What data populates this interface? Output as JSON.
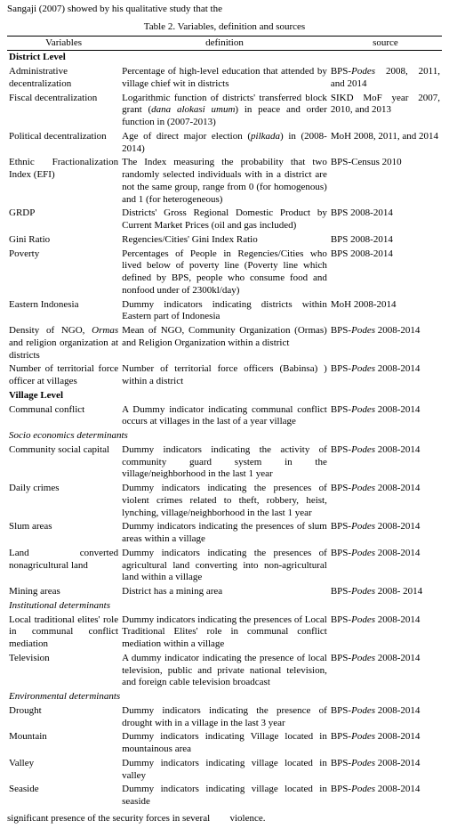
{
  "topFragment": "Sangaji (2007) showed by his qualitative study that the",
  "tableCaption": "Table 2. Variables, definition and sources",
  "headers": {
    "var": "Variables",
    "def": "definition",
    "src": "source"
  },
  "sections": [
    {
      "title": "District Level",
      "rows": [
        {
          "var": "Administrative decentralization",
          "def": "Percentage of high-level education that attended by village chief wit in districts",
          "src": "BPS-<i>Podes</i> 2008, 2011, and 2014"
        },
        {
          "var": "Fiscal decentralization",
          "def": "Logarithmic function of districts' transferred block grant (<i>dana alokasi umum</i>) in peace and order function in (2007-2013)",
          "src": "SIKD MoF  year 2007, 2010, and 2013"
        },
        {
          "var": "Political decentralization",
          "def": "Age of direct major election (<i>pilkada</i>) in (2008-2014)",
          "src": "MoH 2008, 2011, and 2014"
        },
        {
          "var": "Ethnic Fractionalization Index (EFI)",
          "def": "The Index measuring the probability that two randomly selected individuals with in a district are not the same group, range from 0 (for homogenous) and 1 (for heterogeneous)",
          "src": "BPS-Census 2010"
        },
        {
          "var": "GRDP",
          "def": "Districts' Gross Regional Domestic Product by Current Market Prices (oil and gas included)",
          "src": "BPS 2008-2014"
        },
        {
          "var": "Gini Ratio",
          "def": "Regencies/Cities' Gini Index Ratio",
          "src": "BPS 2008-2014"
        },
        {
          "var": "Poverty",
          "def": "Percentages of People in Regencies/Cities who lived below of poverty line (Poverty line which defined by BPS, people who consume food and nonfood under of 2300kl/day)",
          "src": "BPS 2008-2014"
        },
        {
          "var": "Eastern Indonesia",
          "def": "Dummy indicators indicating districts within Eastern part of Indonesia",
          "src": "MoH 2008-2014"
        },
        {
          "var": "Density of NGO, <i>Ormas</i> and religion organization at districts",
          "def": "Mean of NGO, Community Organization (Ormas) and Religion Organization within a district",
          "src": "BPS-<i>Podes</i> 2008-2014"
        },
        {
          "var": "Number of territorial force officer at villages",
          "def": "Number of territorial force officers (Babinsa) ) within a district",
          "src": "BPS-<i>Podes</i> 2008-2014"
        }
      ]
    },
    {
      "title": "Village Level",
      "rows": [
        {
          "var": "Communal conflict",
          "def": "A Dummy indicator indicating communal conflict occurs at villages in the last of a year village",
          "src": "BPS-<i>Podes</i> 2008-2014"
        }
      ]
    },
    {
      "titleItalic": "Socio economics determinants",
      "rows": [
        {
          "var": "Community social capital",
          "def": "Dummy indicators indicating the activity of community guard system  in the village/neighborhood in the last 1 year",
          "src": "BPS-<i>Podes</i> 2008-2014"
        },
        {
          "var": "Daily crimes",
          "def": "Dummy indicators indicating the presences of violent crimes related to theft, robbery, heist, lynching, village/neighborhood in the last 1 year",
          "src": "BPS-<i>Podes</i> 2008-2014"
        },
        {
          "var": "Slum areas",
          "def": "Dummy indicators indicating the presences of  slum areas within a village",
          "src": "BPS-<i>Podes</i> 2008-2014"
        },
        {
          "var": "Land converted nonagricultural land",
          "def": "Dummy indicators indicating the presences of  agricultural land converting into non-agricultural land within a village",
          "src": "BPS-<i>Podes</i> 2008-2014"
        },
        {
          "var": "Mining areas",
          "def": "District has a mining area",
          "src": "BPS-<i>Podes</i> 2008- 2014"
        }
      ]
    },
    {
      "titleItalic": "Institutional determinants",
      "rows": [
        {
          "var": "Local  traditional elites' role in communal conflict  mediation",
          "def": "Dummy indicators indicating the presences of Local Traditional Elites' role  in communal conflict mediation within a village",
          "src": "BPS-<i>Podes</i> 2008-2014"
        },
        {
          "var": "Television",
          "def": "A dummy indicator indicating the presence of local television, public and private national television, and foreign cable television broadcast",
          "src": "BPS-<i>Podes</i> 2008-2014"
        }
      ]
    },
    {
      "titleItalic": "Environmental determinants",
      "rows": [
        {
          "var": "Drought",
          "def": "Dummy indicators indicating the presence of drought with in a village in the last 3 year",
          "src": "BPS-<i>Podes</i> 2008-2014"
        },
        {
          "var": "Mountain",
          "def": "Dummy indicators indicating Village located in mountainous area",
          "src": "BPS-<i>Podes</i> 2008-2014"
        },
        {
          "var": "Valley",
          "def": "Dummy indicators indicating village located in valley",
          "src": "BPS-<i>Podes</i> 2008-2014"
        },
        {
          "var": "Seaside",
          "def": "Dummy indicators indicating village located in seaside",
          "src": "BPS-<i>Podes</i> 2008-2014"
        }
      ]
    }
  ],
  "bottomFragmentL": "significant presence of the security forces in several",
  "bottomFragmentR": "violence."
}
